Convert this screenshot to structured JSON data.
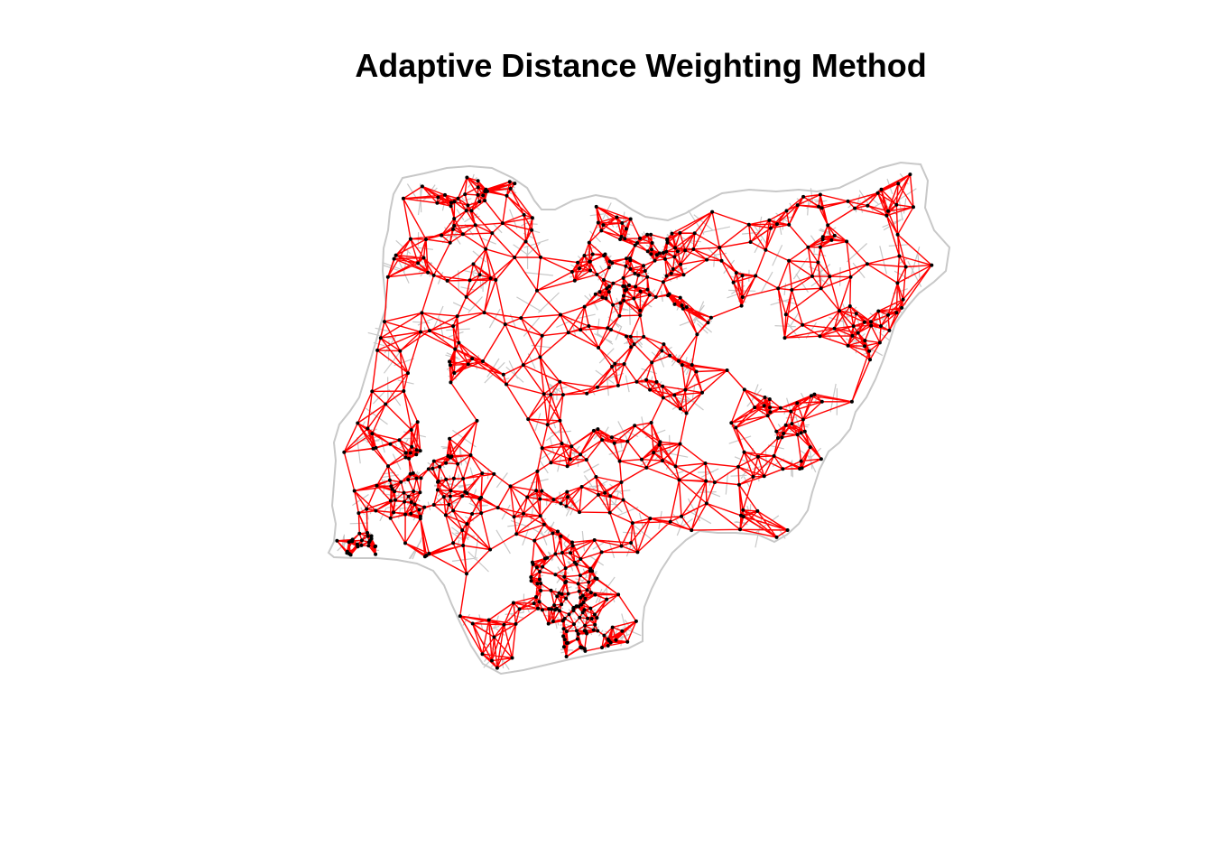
{
  "title": "Adaptive Distance Weighting Method",
  "colors": {
    "boundary": "#c8c8c8",
    "edges": "#ff0000",
    "nodes": "#000000",
    "background": "#ffffff"
  },
  "map": {
    "country": "Nigeria",
    "feature": "neighbour-graph",
    "boundaries": "admin areas (grey)",
    "links": "k-nearest-neighbour connections (red)",
    "centroids": "black points"
  }
}
